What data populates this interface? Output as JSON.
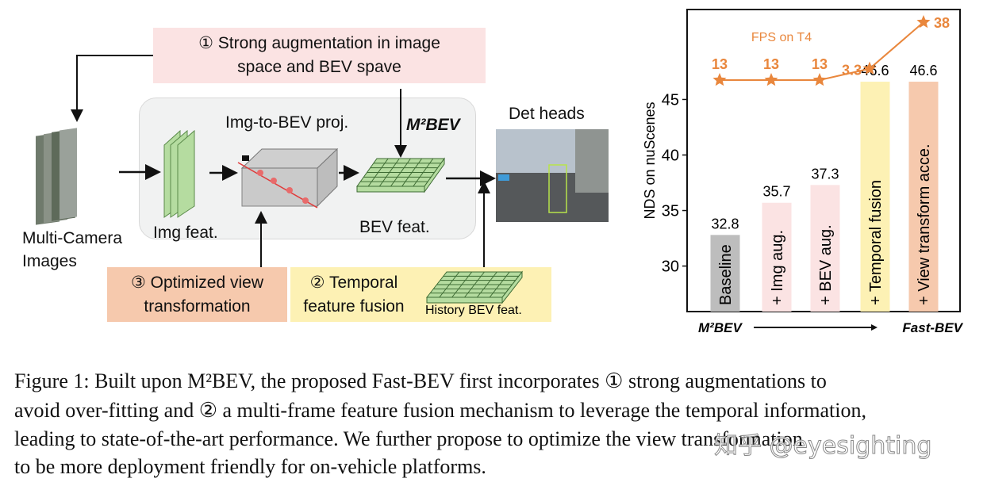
{
  "diagram": {
    "aug_box": {
      "line1": "① Strong augmentation in image",
      "line2": "space and BEV spave",
      "color": "#fbe3e3"
    },
    "multi_camera_label": {
      "line1": "Multi-Camera",
      "line2": "Images"
    },
    "img_feat_label": "Img feat.",
    "proj_label": "Img-to-BEV proj.",
    "m2bev_label": "M²BEV",
    "bev_feat_label": "BEV feat.",
    "det_heads_label": "Det heads",
    "view_box": {
      "line1": "③ Optimized view",
      "line2": "transformation",
      "color": "#f6c9ad"
    },
    "temporal_box": {
      "line1": "② Temporal",
      "line2": "feature fusion",
      "color": "#fdf1b4"
    },
    "history_label": "History BEV feat.",
    "feature_color": "#b5dca0"
  },
  "chart_data": {
    "type": "bar",
    "ylabel": "NDS on nuScenes",
    "ylim": [
      25.9,
      53.1
    ],
    "yticks": [
      30,
      35,
      40,
      45
    ],
    "categories": [
      "Baseline",
      "+ Img aug.",
      "+ BEV aug.",
      "+ Temporal fusion",
      "+ View transform acce."
    ],
    "values": [
      32.8,
      35.7,
      37.3,
      46.6,
      46.6
    ],
    "value_labels": [
      "32.8",
      "35.7",
      "37.3",
      "46.6",
      "46.6"
    ],
    "bar_colors": [
      "#bdbdbd",
      "#fbe3e3",
      "#fbe3e3",
      "#fdf1b4",
      "#f6c9ad"
    ],
    "line_series": {
      "name": "FPS on T4",
      "values": [
        13,
        13,
        13,
        3.3,
        38
      ],
      "labels": [
        "13",
        "13",
        "13",
        "3.3",
        "38"
      ],
      "color": "#e9873d",
      "marker": "star"
    },
    "x_start_label": "M²BEV",
    "x_end_label": "Fast-BEV",
    "grid": false
  },
  "caption": {
    "line1": "Figure 1: Built upon M²BEV, the proposed Fast-BEV first incorporates ① strong augmentations to",
    "line2": "avoid over-fitting and ② a multi-frame feature fusion mechanism to leverage the temporal information,",
    "line3": "leading to state-of-the-art performance. We further propose to optimize the view transformation",
    "line4": "to be more deployment friendly for on-vehicle platforms."
  },
  "watermark": "知乎 @eyesighting"
}
